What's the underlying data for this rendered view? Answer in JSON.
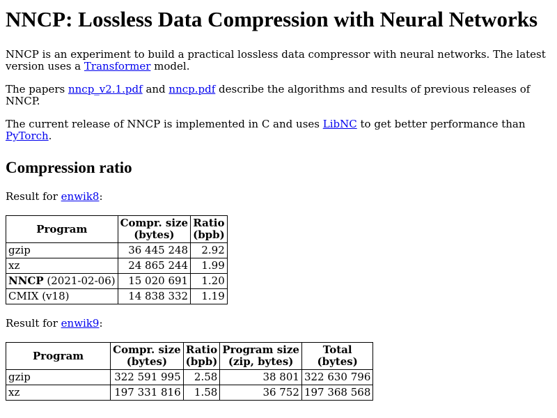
{
  "title": "NNCP: Lossless Data Compression with Neural Networks",
  "intro": {
    "text_before": "NNCP is an experiment to build a practical lossless data compressor with neural networks. The latest version uses a ",
    "link": "Transformer",
    "text_after": " model."
  },
  "papers": {
    "text1": "The papers ",
    "link1": "nncp_v2.1.pdf",
    "text2": " and ",
    "link2": "nncp.pdf",
    "text3": " describe the algorithms and results of previous releases of NNCP."
  },
  "release": {
    "text1": "The current release of NNCP is implemented in C and uses ",
    "link1": "LibNC",
    "text2": " to get better performance than ",
    "link2": "PyTorch",
    "text3": "."
  },
  "section_heading": "Compression ratio",
  "enwik8": {
    "label_before": "Result for ",
    "link": "enwik8",
    "label_after": ":",
    "headers": {
      "program": "Program",
      "size_line1": "Compr. size",
      "size_line2": "(bytes)",
      "ratio_line1": "Ratio",
      "ratio_line2": "(bpb)"
    },
    "rows": [
      {
        "name": "gzip",
        "note": "",
        "size": "36 445 248",
        "ratio": "2.92"
      },
      {
        "name": "xz",
        "note": "",
        "size": "24 865 244",
        "ratio": "1.99"
      },
      {
        "name": "NNCP",
        "note": " (2021-02-06)",
        "size": "15 020 691",
        "ratio": "1.20"
      },
      {
        "name": "CMIX (v18)",
        "note": "",
        "size": "14 838 332",
        "ratio": "1.19"
      }
    ]
  },
  "enwik9": {
    "label_before": "Result for ",
    "link": "enwik9",
    "label_after": ":",
    "headers": {
      "program": "Program",
      "size_line1": "Compr. size",
      "size_line2": "(bytes)",
      "ratio_line1": "Ratio",
      "ratio_line2": "(bpb)",
      "progsize_line1": "Program size",
      "progsize_line2": "(zip, bytes)",
      "total_line1": "Total",
      "total_line2": "(bytes)"
    },
    "rows": [
      {
        "name": "gzip",
        "size": "322 591 995",
        "ratio": "2.58",
        "progsize": "38 801",
        "total": "322 630 796"
      },
      {
        "name": "xz",
        "size": "197 331 816",
        "ratio": "1.58",
        "progsize": "36 752",
        "total": "197 368 568"
      }
    ]
  }
}
